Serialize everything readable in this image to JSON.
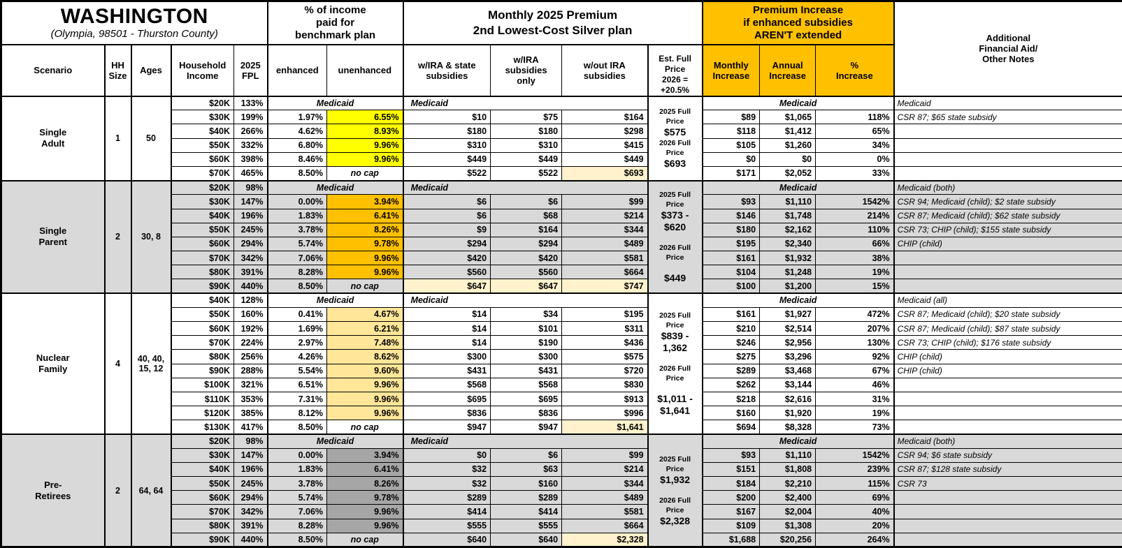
{
  "chart_data": {
    "type": "table",
    "title": "WASHINGTON",
    "subtitle": "(Olympia, 98501 - Thurston County)",
    "labels": {
      "medicaid": "Medicaid",
      "no_cap": "no cap"
    },
    "colors": {
      "header_orange": "#FFC000",
      "single_adult_highlight": "#FFFF00",
      "single_parent_highlight": "#FFC000",
      "nuclear_family_highlight": "#FFE699",
      "pre_retirees_highlight": "#A6A6A6",
      "full_price_highlight": "#FFF2CC",
      "section_gray": "#D9D9D9"
    },
    "headers": {
      "group_pct_income": "% of income\npaid for\nbenchmark plan",
      "group_premium": "Monthly 2025 Premium\n2nd Lowest-Cost Silver plan",
      "group_increase": "Premium Increase\nif enhanced subsidies\nAREN'T extended",
      "scenario": "Scenario",
      "hh_size": "HH\nSize",
      "ages": "Ages",
      "household_income": "Household\nIncome",
      "fpl": "2025\nFPL",
      "enhanced": "enhanced",
      "unenhanced": "unenhanced",
      "w_ira_state": "w/IRA & state\nsubsidies",
      "w_ira_only": "w/IRA\nsubsidies\nonly",
      "w_out_ira": "w/out IRA\nsubsidies",
      "est_full": "Est. Full\nPrice\n2026 =\n+20.5%",
      "monthly_inc": "Monthly\nIncrease",
      "annual_inc": "Annual\nIncrease",
      "pct_inc": "%\nIncrease",
      "notes": "Additional\nFinancial Aid/\nOther Notes"
    },
    "sections": [
      {
        "scenario": "Single\nAdult",
        "hh": "1",
        "ages": "50",
        "bg": "#FFFFFF",
        "unenh_bg": "#FFFF00",
        "est": [
          {
            "t": "2025 Full Price"
          },
          {
            "t": "$575",
            "big": true
          },
          {
            "t": "2026 Full Price"
          },
          {
            "t": "$693",
            "big": true
          }
        ],
        "rows": [
          {
            "med": true,
            "inc": "$20K",
            "fpl": "133%",
            "note": "Medicaid"
          },
          {
            "inc": "$30K",
            "fpl": "199%",
            "enh": "1.97%",
            "unenh": "6.55%",
            "p": [
              "$10",
              "$75",
              "$164"
            ],
            "mo": "$89",
            "yr": "$1,065",
            "pct": "118%",
            "note": "CSR 87; $65 state subsidy"
          },
          {
            "inc": "$40K",
            "fpl": "266%",
            "enh": "4.62%",
            "unenh": "8.93%",
            "p": [
              "$180",
              "$180",
              "$298"
            ],
            "mo": "$118",
            "yr": "$1,412",
            "pct": "65%",
            "note": ""
          },
          {
            "inc": "$50K",
            "fpl": "332%",
            "enh": "6.80%",
            "unenh": "9.96%",
            "p": [
              "$310",
              "$310",
              "$415"
            ],
            "mo": "$105",
            "yr": "$1,260",
            "pct": "34%",
            "note": ""
          },
          {
            "inc": "$60K",
            "fpl": "398%",
            "enh": "8.46%",
            "unenh": "9.96%",
            "p": [
              "$449",
              "$449",
              "$449"
            ],
            "mo": "$0",
            "yr": "$0",
            "pct": "0%",
            "note": ""
          },
          {
            "inc": "$70K",
            "fpl": "465%",
            "enh": "8.50%",
            "nocap": true,
            "p": [
              "$522",
              "$522",
              "$693"
            ],
            "phl": [
              false,
              false,
              true
            ],
            "mo": "$171",
            "yr": "$2,052",
            "pct": "33%",
            "note": ""
          }
        ]
      },
      {
        "scenario": "Single\nParent",
        "hh": "2",
        "ages": "30, 8",
        "bg": "#D9D9D9",
        "unenh_bg": "#FFC000",
        "est": [
          {
            "t": "2025 Full Price"
          },
          {
            "t": "$373 -",
            "big": true
          },
          {
            "t": "$620",
            "big": true
          },
          {
            "t": ""
          },
          {
            "t": "2026 Full Price"
          },
          {
            "t": ""
          },
          {
            "t": "$449",
            "big": true
          }
        ],
        "rows": [
          {
            "med": true,
            "inc": "$20K",
            "fpl": "98%",
            "note": "Medicaid (both)"
          },
          {
            "inc": "$30K",
            "fpl": "147%",
            "enh": "0.00%",
            "unenh": "3.94%",
            "p": [
              "$6",
              "$6",
              "$99"
            ],
            "mo": "$93",
            "yr": "$1,110",
            "pct": "1542%",
            "note": "CSR 94; Medicaid (child); $2 state subsidy"
          },
          {
            "inc": "$40K",
            "fpl": "196%",
            "enh": "1.83%",
            "unenh": "6.41%",
            "p": [
              "$6",
              "$68",
              "$214"
            ],
            "mo": "$146",
            "yr": "$1,748",
            "pct": "214%",
            "note": "CSR 87; Medicaid (child); $62 state subsidy"
          },
          {
            "inc": "$50K",
            "fpl": "245%",
            "enh": "3.78%",
            "unenh": "8.26%",
            "p": [
              "$9",
              "$164",
              "$344"
            ],
            "mo": "$180",
            "yr": "$2,162",
            "pct": "110%",
            "note": "CSR 73; CHIP (child); $155 state subsidy"
          },
          {
            "inc": "$60K",
            "fpl": "294%",
            "enh": "5.74%",
            "unenh": "9.78%",
            "p": [
              "$294",
              "$294",
              "$489"
            ],
            "mo": "$195",
            "yr": "$2,340",
            "pct": "66%",
            "note": "CHIP (child)"
          },
          {
            "inc": "$70K",
            "fpl": "342%",
            "enh": "7.06%",
            "unenh": "9.96%",
            "p": [
              "$420",
              "$420",
              "$581"
            ],
            "mo": "$161",
            "yr": "$1,932",
            "pct": "38%",
            "note": ""
          },
          {
            "inc": "$80K",
            "fpl": "391%",
            "enh": "8.28%",
            "unenh": "9.96%",
            "p": [
              "$560",
              "$560",
              "$664"
            ],
            "mo": "$104",
            "yr": "$1,248",
            "pct": "19%",
            "note": ""
          },
          {
            "inc": "$90K",
            "fpl": "440%",
            "enh": "8.50%",
            "nocap": true,
            "p": [
              "$647",
              "$647",
              "$747"
            ],
            "phl": [
              true,
              true,
              true
            ],
            "mo": "$100",
            "yr": "$1,200",
            "pct": "15%",
            "note": ""
          }
        ]
      },
      {
        "scenario": "Nuclear\nFamily",
        "hh": "4",
        "ages": "40, 40,\n15, 12",
        "bg": "#FFFFFF",
        "unenh_bg": "#FFE699",
        "est": [
          {
            "t": "2025 Full Price"
          },
          {
            "t": "$839 -",
            "big": true
          },
          {
            "t": "1,362",
            "big": true
          },
          {
            "t": ""
          },
          {
            "t": "2026 Full Price"
          },
          {
            "t": ""
          },
          {
            "t": "$1,011 -",
            "big": true
          },
          {
            "t": "$1,641",
            "big": true
          }
        ],
        "rows": [
          {
            "med": true,
            "inc": "$40K",
            "fpl": "128%",
            "note": "Medicaid (all)"
          },
          {
            "inc": "$50K",
            "fpl": "160%",
            "enh": "0.41%",
            "unenh": "4.67%",
            "p": [
              "$14",
              "$34",
              "$195"
            ],
            "mo": "$161",
            "yr": "$1,927",
            "pct": "472%",
            "note": "CSR 87; Medicaid (child); $20 state subsidy"
          },
          {
            "inc": "$60K",
            "fpl": "192%",
            "enh": "1.69%",
            "unenh": "6.21%",
            "p": [
              "$14",
              "$101",
              "$311"
            ],
            "mo": "$210",
            "yr": "$2,514",
            "pct": "207%",
            "note": "CSR 87; Medicaid (child); $87 state subsidy"
          },
          {
            "inc": "$70K",
            "fpl": "224%",
            "enh": "2.97%",
            "unenh": "7.48%",
            "p": [
              "$14",
              "$190",
              "$436"
            ],
            "mo": "$246",
            "yr": "$2,956",
            "pct": "130%",
            "note": "CSR 73; CHIP (child); $176 state subsidy"
          },
          {
            "inc": "$80K",
            "fpl": "256%",
            "enh": "4.26%",
            "unenh": "8.62%",
            "p": [
              "$300",
              "$300",
              "$575"
            ],
            "mo": "$275",
            "yr": "$3,296",
            "pct": "92%",
            "note": "CHIP (child)"
          },
          {
            "inc": "$90K",
            "fpl": "288%",
            "enh": "5.54%",
            "unenh": "9.60%",
            "p": [
              "$431",
              "$431",
              "$720"
            ],
            "mo": "$289",
            "yr": "$3,468",
            "pct": "67%",
            "note": "CHIP (child)"
          },
          {
            "inc": "$100K",
            "fpl": "321%",
            "enh": "6.51%",
            "unenh": "9.96%",
            "p": [
              "$568",
              "$568",
              "$830"
            ],
            "mo": "$262",
            "yr": "$3,144",
            "pct": "46%",
            "note": ""
          },
          {
            "inc": "$110K",
            "fpl": "353%",
            "enh": "7.31%",
            "unenh": "9.96%",
            "p": [
              "$695",
              "$695",
              "$913"
            ],
            "mo": "$218",
            "yr": "$2,616",
            "pct": "31%",
            "note": ""
          },
          {
            "inc": "$120K",
            "fpl": "385%",
            "enh": "8.12%",
            "unenh": "9.96%",
            "p": [
              "$836",
              "$836",
              "$996"
            ],
            "mo": "$160",
            "yr": "$1,920",
            "pct": "19%",
            "note": ""
          },
          {
            "inc": "$130K",
            "fpl": "417%",
            "enh": "8.50%",
            "nocap": true,
            "p": [
              "$947",
              "$947",
              "$1,641"
            ],
            "phl": [
              false,
              false,
              true
            ],
            "mo": "$694",
            "yr": "$8,328",
            "pct": "73%",
            "note": ""
          }
        ]
      },
      {
        "scenario": "Pre-\nRetirees",
        "hh": "2",
        "ages": "64, 64",
        "bg": "#D9D9D9",
        "unenh_bg": "#A6A6A6",
        "est": [
          {
            "t": "2025 Full Price"
          },
          {
            "t": "$1,932",
            "big": true
          },
          {
            "t": ""
          },
          {
            "t": "2026 Full Price"
          },
          {
            "t": "$2,328",
            "big": true
          }
        ],
        "rows": [
          {
            "med": true,
            "inc": "$20K",
            "fpl": "98%",
            "note": "Medicaid (both)"
          },
          {
            "inc": "$30K",
            "fpl": "147%",
            "enh": "0.00%",
            "unenh": "3.94%",
            "p": [
              "$0",
              "$6",
              "$99"
            ],
            "mo": "$93",
            "yr": "$1,110",
            "pct": "1542%",
            "note": "CSR 94; $6 state subsidy"
          },
          {
            "inc": "$40K",
            "fpl": "196%",
            "enh": "1.83%",
            "unenh": "6.41%",
            "p": [
              "$32",
              "$63",
              "$214"
            ],
            "mo": "$151",
            "yr": "$1,808",
            "pct": "239%",
            "note": "CSR 87; $128 state subsidy"
          },
          {
            "inc": "$50K",
            "fpl": "245%",
            "enh": "3.78%",
            "unenh": "8.26%",
            "p": [
              "$32",
              "$160",
              "$344"
            ],
            "mo": "$184",
            "yr": "$2,210",
            "pct": "115%",
            "note": "CSR 73"
          },
          {
            "inc": "$60K",
            "fpl": "294%",
            "enh": "5.74%",
            "unenh": "9.78%",
            "p": [
              "$289",
              "$289",
              "$489"
            ],
            "mo": "$200",
            "yr": "$2,400",
            "pct": "69%",
            "note": ""
          },
          {
            "inc": "$70K",
            "fpl": "342%",
            "enh": "7.06%",
            "unenh": "9.96%",
            "p": [
              "$414",
              "$414",
              "$581"
            ],
            "mo": "$167",
            "yr": "$2,004",
            "pct": "40%",
            "note": ""
          },
          {
            "inc": "$80K",
            "fpl": "391%",
            "enh": "8.28%",
            "unenh": "9.96%",
            "p": [
              "$555",
              "$555",
              "$664"
            ],
            "mo": "$109",
            "yr": "$1,308",
            "pct": "20%",
            "note": ""
          },
          {
            "inc": "$90K",
            "fpl": "440%",
            "enh": "8.50%",
            "nocap": true,
            "p": [
              "$640",
              "$640",
              "$2,328"
            ],
            "phl": [
              false,
              false,
              true
            ],
            "mo": "$1,688",
            "yr": "$20,256",
            "pct": "264%",
            "note": ""
          }
        ]
      }
    ]
  }
}
